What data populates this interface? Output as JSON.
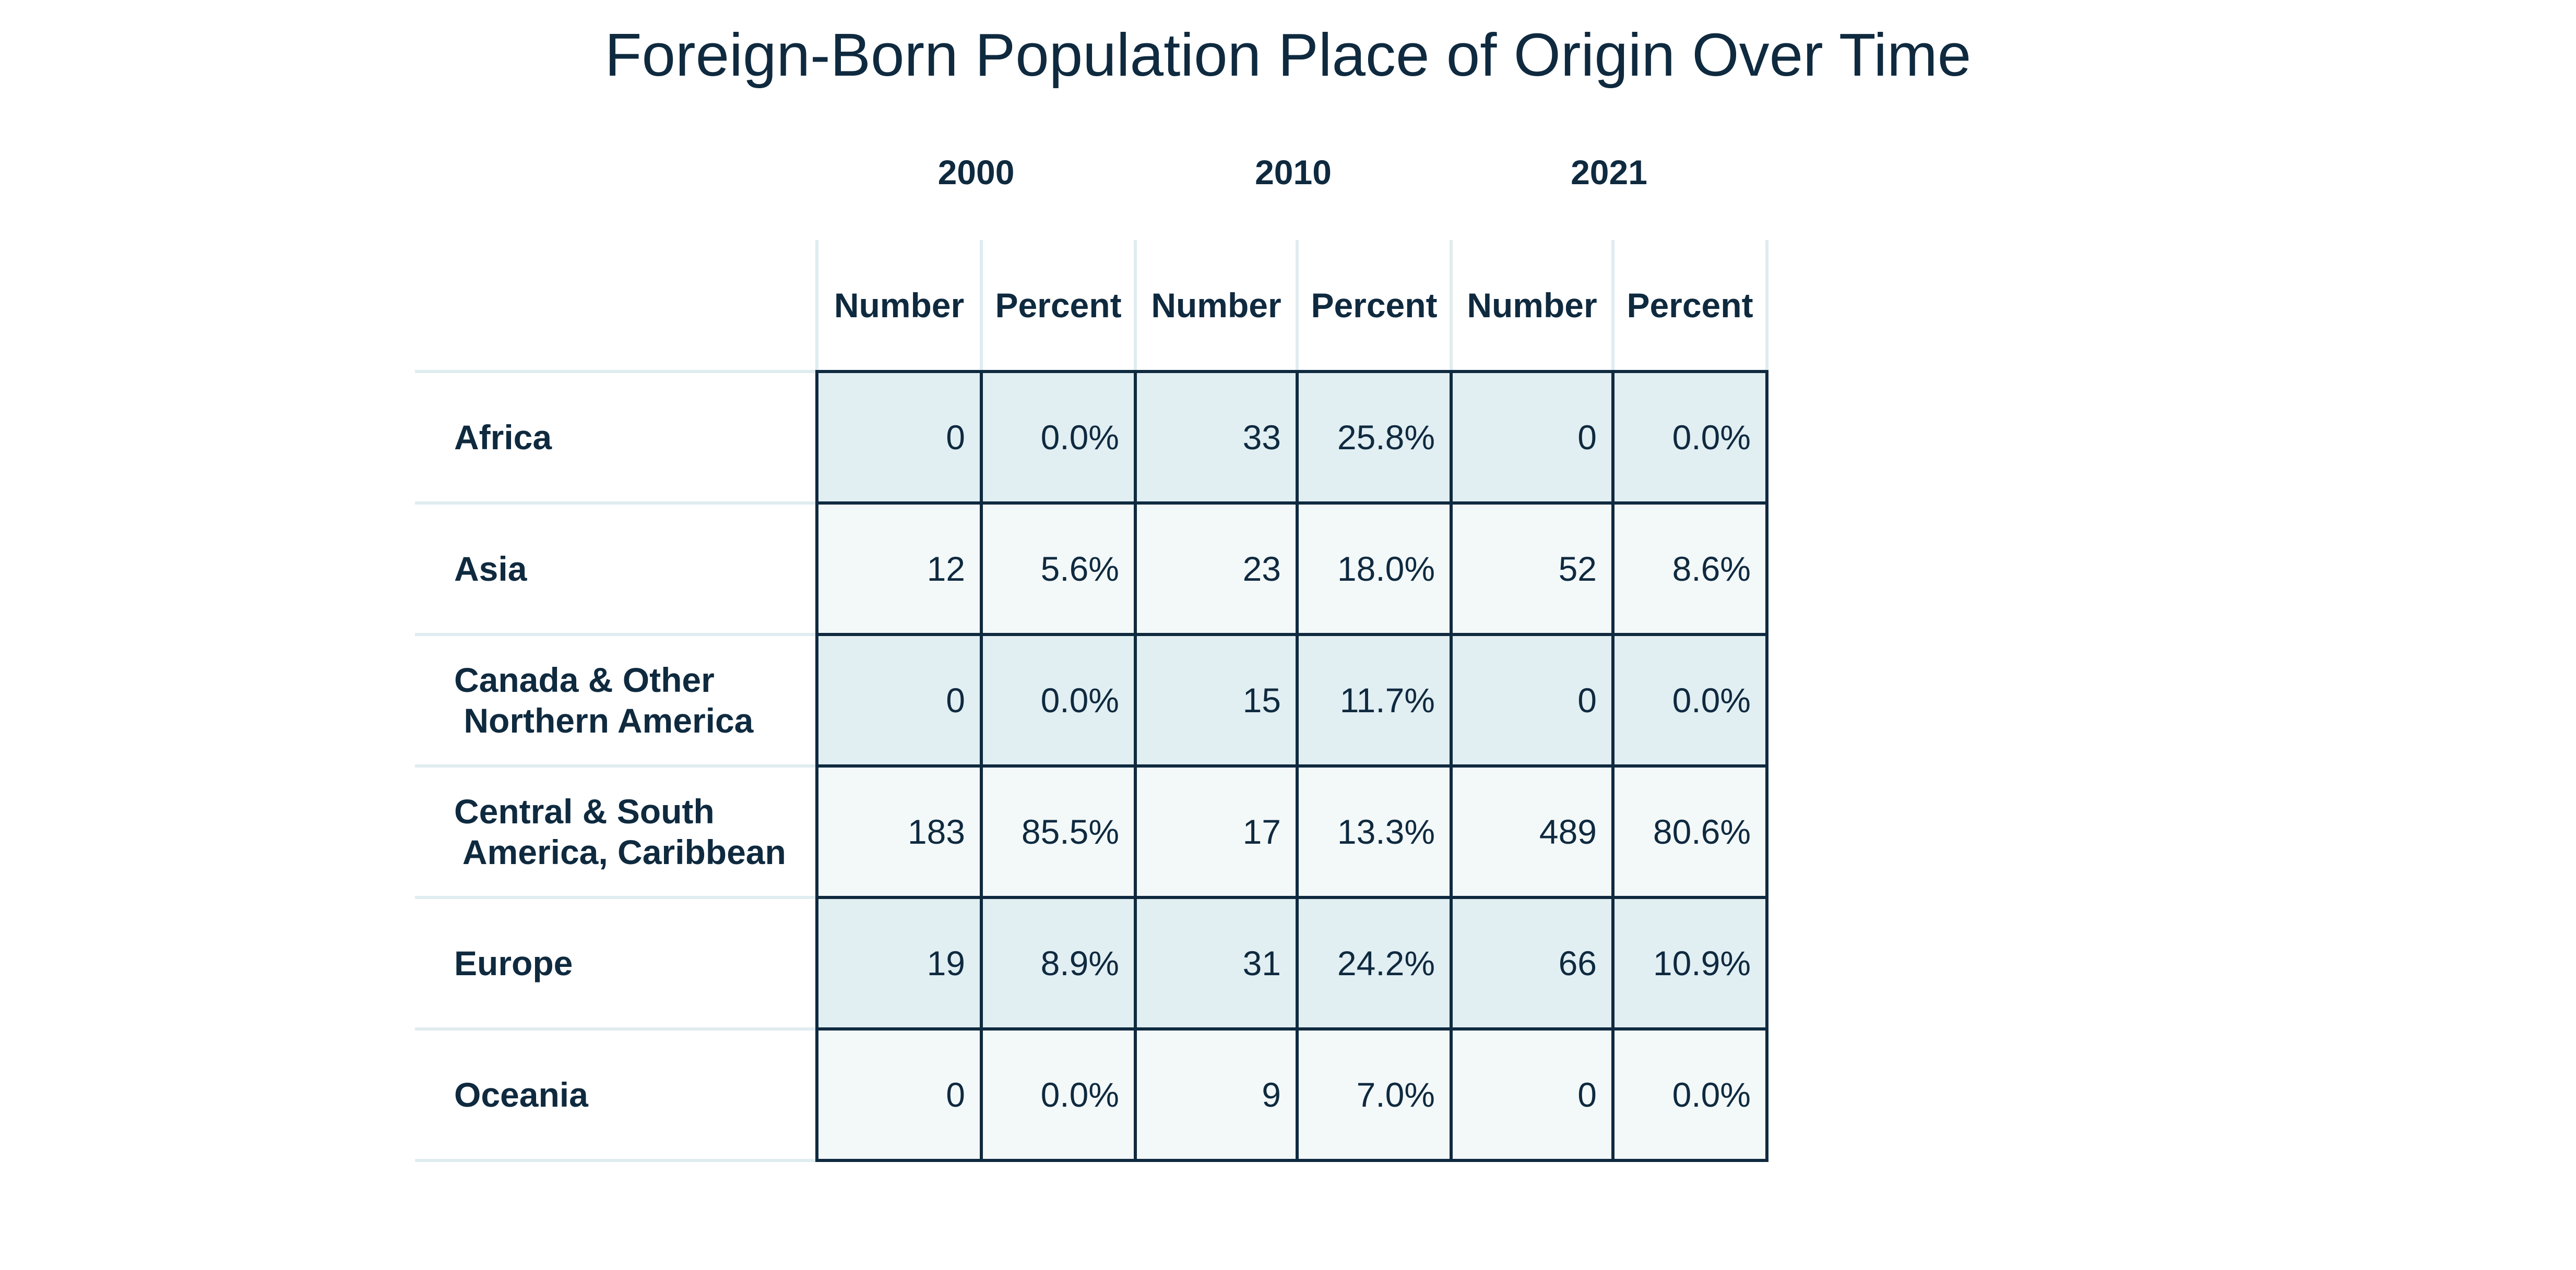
{
  "chart_data": {
    "type": "table",
    "title": "Foreign-Born Population Place of Origin Over Time",
    "years": [
      "2000",
      "2010",
      "2021"
    ],
    "subheaders": [
      "Number",
      "Percent"
    ],
    "rows": [
      {
        "label": [
          "Africa"
        ],
        "cells": [
          "0",
          "0.0%",
          "33",
          "25.8%",
          "0",
          "0.0%"
        ]
      },
      {
        "label": [
          "Asia"
        ],
        "cells": [
          "12",
          "5.6%",
          "23",
          "18.0%",
          "52",
          "8.6%"
        ]
      },
      {
        "label": [
          "Canada & Other",
          " Northern America"
        ],
        "cells": [
          "0",
          "0.0%",
          "15",
          "11.7%",
          "0",
          "0.0%"
        ]
      },
      {
        "label": [
          "Central & South",
          " America, Caribbean"
        ],
        "cells": [
          "183",
          "85.5%",
          "17",
          "13.3%",
          "489",
          "80.6%"
        ]
      },
      {
        "label": [
          "Europe"
        ],
        "cells": [
          "19",
          "8.9%",
          "31",
          "24.2%",
          "66",
          "10.9%"
        ]
      },
      {
        "label": [
          "Oceania"
        ],
        "cells": [
          "0",
          "0.0%",
          "9",
          "7.0%",
          "0",
          "0.0%"
        ]
      }
    ],
    "colors": {
      "text": "#0f2a3f",
      "shade_odd": "#e1eef2",
      "shade_even": "#f3f8f9",
      "rule": "#dfecf0",
      "border": "#0f2a3f"
    }
  }
}
